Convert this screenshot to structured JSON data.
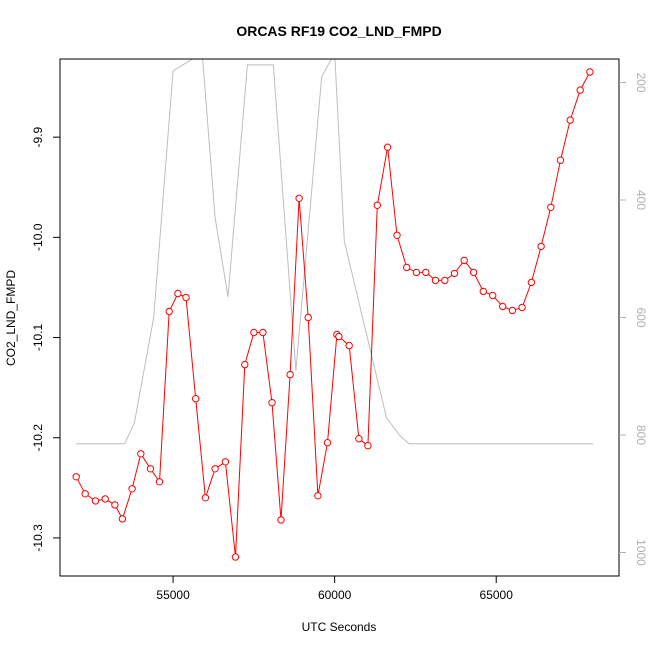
{
  "chart_data": {
    "type": "line",
    "title": "ORCAS RF19 CO2_LND_FMPD",
    "xlabel": "UTC Seconds",
    "ylabel": "CO2_LND_FMPD",
    "xlim": [
      51500,
      68800
    ],
    "ylim": [
      -10.338,
      -9.822
    ],
    "y2lim": [
      1040,
      160
    ],
    "grid": false,
    "x_ticks": [
      {
        "value": 55000,
        "label": "55000"
      },
      {
        "value": 60000,
        "label": "60000"
      },
      {
        "value": 65000,
        "label": "65000"
      }
    ],
    "y_ticks": [
      {
        "value": -10.3,
        "label": "-10.3"
      },
      {
        "value": -10.2,
        "label": "-10.2"
      },
      {
        "value": -10.1,
        "label": "-10.1"
      },
      {
        "value": -10.0,
        "label": "-10.0"
      },
      {
        "value": -9.9,
        "label": "-9.9"
      }
    ],
    "y2_ticks": [
      {
        "value": 200,
        "label": "200"
      },
      {
        "value": 400,
        "label": "400"
      },
      {
        "value": 600,
        "label": "600"
      },
      {
        "value": 800,
        "label": "800"
      },
      {
        "value": 1000,
        "label": "1000"
      }
    ],
    "series": [
      {
        "color": "#ff0000",
        "marker": "open-circle",
        "x": [
          52000,
          52280,
          52600,
          52900,
          53200,
          53430,
          53730,
          54000,
          54300,
          54580,
          54880,
          55150,
          55400,
          55700,
          56000,
          56300,
          56620,
          56930,
          57220,
          57500,
          57780,
          58060,
          58340,
          58620,
          58900,
          59180,
          59480,
          59780,
          60070,
          60130,
          60450,
          60750,
          61030,
          61320,
          61640,
          61930,
          62230,
          62530,
          62820,
          63120,
          63410,
          63710,
          64010,
          64300,
          64600,
          64890,
          65200,
          65500,
          65800,
          66090,
          66390,
          66690,
          66990,
          67290,
          67600,
          67900
        ],
        "y": [
          -10.239,
          -10.256,
          -10.263,
          -10.261,
          -10.267,
          -10.281,
          -10.251,
          -10.216,
          -10.231,
          -10.244,
          -10.074,
          -10.056,
          -10.06,
          -10.161,
          -10.26,
          -10.231,
          -10.224,
          -10.319,
          -10.127,
          -10.095,
          -10.095,
          -10.165,
          -10.282,
          -10.137,
          -9.961,
          -10.08,
          -10.258,
          -10.205,
          -10.097,
          -10.099,
          -10.108,
          -10.201,
          -10.208,
          -9.968,
          -9.91,
          -9.998,
          -10.03,
          -10.035,
          -10.035,
          -10.043,
          -10.043,
          -10.036,
          -10.023,
          -10.035,
          -10.054,
          -10.058,
          -10.069,
          -10.073,
          -10.07,
          -10.045,
          -10.009,
          -9.97,
          -9.923,
          -9.883,
          -9.853,
          -9.835
        ]
      },
      {
        "color": "#bebebe",
        "axis": "right",
        "x": [
          52000,
          53500,
          53800,
          54400,
          55000,
          55900,
          56300,
          56700,
          57300,
          58100,
          58800,
          59600,
          60000,
          60300,
          61600,
          62000,
          62300,
          64000,
          66000,
          68000
        ],
        "y": [
          815,
          815,
          780,
          600,
          180,
          150,
          430,
          565,
          170,
          170,
          690,
          190,
          150,
          470,
          770,
          800,
          815,
          815,
          815,
          815
        ]
      }
    ]
  }
}
